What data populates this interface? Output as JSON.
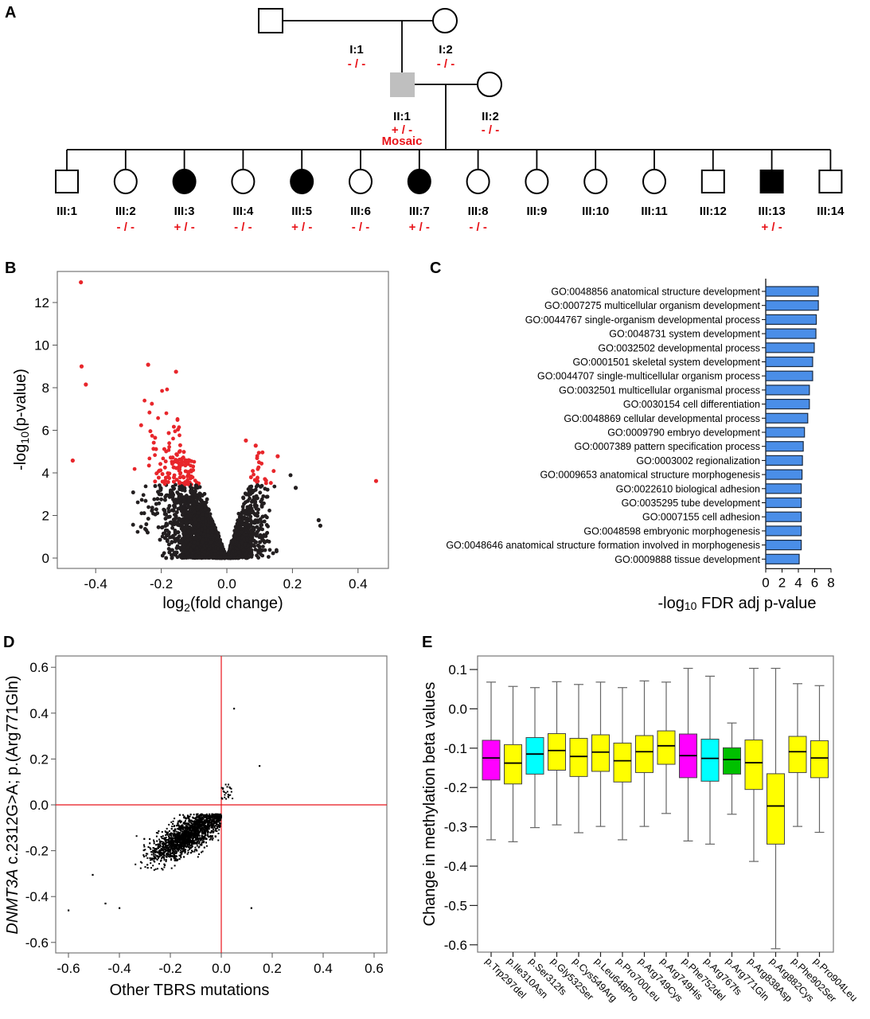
{
  "panels": {
    "A": {
      "letter": "A",
      "pedigree": {
        "generation_I": [
          {
            "id": "I:1",
            "sex": "male",
            "status": "unaffected",
            "genotype": "- / -"
          },
          {
            "id": "I:2",
            "sex": "female",
            "status": "unaffected",
            "genotype": "- / -"
          }
        ],
        "generation_II": [
          {
            "id": "II:1",
            "sex": "male",
            "status": "mosaic",
            "genotype": "+ / -",
            "note": "Mosaic"
          },
          {
            "id": "II:2",
            "sex": "female",
            "status": "unaffected",
            "genotype": "- / -"
          }
        ],
        "generation_III": [
          {
            "id": "III:1",
            "sex": "male",
            "status": "unaffected",
            "genotype": ""
          },
          {
            "id": "III:2",
            "sex": "female",
            "status": "unaffected",
            "genotype": "- / -"
          },
          {
            "id": "III:3",
            "sex": "female",
            "status": "affected",
            "genotype": "+ / -"
          },
          {
            "id": "III:4",
            "sex": "female",
            "status": "unaffected",
            "genotype": "- / -"
          },
          {
            "id": "III:5",
            "sex": "female",
            "status": "affected",
            "genotype": "+ / -"
          },
          {
            "id": "III:6",
            "sex": "female",
            "status": "unaffected",
            "genotype": "- / -"
          },
          {
            "id": "III:7",
            "sex": "female",
            "status": "affected",
            "genotype": "+ / -"
          },
          {
            "id": "III:8",
            "sex": "female",
            "status": "unaffected",
            "genotype": "- / -"
          },
          {
            "id": "III:9",
            "sex": "female",
            "status": "unaffected",
            "genotype": ""
          },
          {
            "id": "III:10",
            "sex": "female",
            "status": "unaffected",
            "genotype": ""
          },
          {
            "id": "III:11",
            "sex": "female",
            "status": "unaffected",
            "genotype": ""
          },
          {
            "id": "III:12",
            "sex": "male",
            "status": "unaffected",
            "genotype": ""
          },
          {
            "id": "III:13",
            "sex": "male",
            "status": "affected",
            "genotype": "+ / -"
          },
          {
            "id": "III:14",
            "sex": "male",
            "status": "unaffected",
            "genotype": ""
          }
        ],
        "colors": {
          "affected": "#000000",
          "mosaic": "#bfbfbf",
          "unaffected": "#ffffff",
          "genotype_text": "#e8141a"
        }
      }
    },
    "B": {
      "letter": "B"
    },
    "C": {
      "letter": "C"
    },
    "D": {
      "letter": "D"
    },
    "E": {
      "letter": "E"
    }
  },
  "chart_data": [
    {
      "panel": "B",
      "type": "scatter",
      "title": "",
      "xlabel": "log2(fold change)",
      "xlabel_main": "log",
      "xlabel_sub": "2",
      "xlabel_rest": "(fold change)",
      "ylabel_main": "-log",
      "ylabel_sub": "10",
      "ylabel_rest": "(p-value)",
      "ylabel": "-log10(p-value)",
      "xlim": [
        -0.5,
        0.5
      ],
      "ylim": [
        -0.5,
        13.5
      ],
      "xticks": [
        -0.4,
        -0.2,
        0.0,
        0.2,
        0.4
      ],
      "xtick_labels": [
        "-0.4",
        "-0.2",
        "0.0",
        "0.2",
        "0.4"
      ],
      "yticks": [
        0,
        2,
        4,
        6,
        8,
        10,
        12
      ],
      "ytick_labels": [
        "0",
        "2",
        "4",
        "6",
        "8",
        "10",
        "12"
      ],
      "significance_threshold": 3.45,
      "colors": {
        "significant": "#e8262b",
        "nonsignificant": "#231f20"
      },
      "highlighted_points": [
        {
          "x": -0.445,
          "y": 12.95
        },
        {
          "x": -0.443,
          "y": 9.0
        },
        {
          "x": -0.43,
          "y": 8.15
        },
        {
          "x": -0.47,
          "y": 4.58
        },
        {
          "x": 0.455,
          "y": 3.62
        },
        {
          "x": -0.24,
          "y": 9.08
        },
        {
          "x": -0.155,
          "y": 8.75
        },
        {
          "x": 0.058,
          "y": 5.52
        },
        {
          "x": 0.088,
          "y": 5.28
        },
        {
          "x": 0.155,
          "y": 4.78
        },
        {
          "x": 0.21,
          "y": 3.3
        },
        {
          "x": 0.28,
          "y": 1.78
        },
        {
          "x": 0.285,
          "y": 1.52
        }
      ],
      "note": "Volcano plot: dense cloud of points; points above threshold on -log10 p colored red"
    },
    {
      "panel": "C",
      "type": "bar",
      "orientation": "horizontal",
      "xlabel": "-log10 FDR adj p-value",
      "xlabel_main": "-log",
      "xlabel_sub": "10",
      "xlabel_rest": " FDR adj p-value",
      "xlim": [
        0,
        8
      ],
      "xticks": [
        0,
        2,
        4,
        6,
        8
      ],
      "xtick_labels": [
        "0",
        "2",
        "4",
        "6",
        "8"
      ],
      "bar_color": "#4a8ee8",
      "categories": [
        "GO:0048856 anatomical structure development",
        "GO:0007275 multicellular organism development",
        "GO:0044767 single-organism developmental process",
        "GO:0048731 system development",
        "GO:0032502 developmental process",
        "GO:0001501 skeletal system development",
        "GO:0044707 single-multicellular organism process",
        "GO:0032501 multicellular organismal process",
        "GO:0030154 cell differentiation",
        "GO:0048869 cellular developmental process",
        "GO:0009790 embryo development",
        "GO:0007389 pattern specification process",
        "GO:0003002 regionalization",
        "GO:0009653 anatomical structure morphogenesis",
        "GO:0022610 biological adhesion",
        "GO:0035295 tube development",
        "GO:0007155 cell adhesion",
        "GO:0048598 embryonic morphogenesis",
        "GO:0048646 anatomical structure formation involved in morphogenesis",
        "GO:0009888 tissue development"
      ],
      "values": [
        6.45,
        6.45,
        6.2,
        6.15,
        5.95,
        5.75,
        5.75,
        5.35,
        5.35,
        5.15,
        4.75,
        4.6,
        4.5,
        4.45,
        4.35,
        4.35,
        4.35,
        4.35,
        4.35,
        4.1
      ]
    },
    {
      "panel": "D",
      "type": "scatter",
      "xlabel": "Other TBRS mutations",
      "ylabel_italic": "DNMT3A",
      "ylabel_rest": " c.2312G>A; p.(Arg771Gln)",
      "ylabel": "DNMT3A c.2312G>A; p.(Arg771Gln)",
      "xlim": [
        -0.65,
        0.65
      ],
      "ylim": [
        -0.65,
        0.65
      ],
      "xticks": [
        -0.6,
        -0.4,
        -0.2,
        0.0,
        0.2,
        0.4,
        0.6
      ],
      "xtick_labels": [
        "-0.6",
        "-0.4",
        "-0.2",
        "0.0",
        "0.2",
        "0.4",
        "0.6"
      ],
      "yticks": [
        -0.6,
        -0.4,
        -0.2,
        0.0,
        0.2,
        0.4,
        0.6
      ],
      "ytick_labels": [
        "-0.6",
        "-0.4",
        "-0.2",
        "0.0",
        "0.2",
        "0.4",
        "0.6"
      ],
      "reference_lines": {
        "x": 0.0,
        "y": 0.0,
        "color": "#e8141a"
      },
      "outlier_points": [
        {
          "x": 0.05,
          "y": 0.42
        },
        {
          "x": 0.15,
          "y": 0.17
        },
        {
          "x": -0.6,
          "y": -0.46
        },
        {
          "x": -0.455,
          "y": -0.43
        },
        {
          "x": -0.4,
          "y": -0.45
        },
        {
          "x": 0.118,
          "y": -0.45
        },
        {
          "x": -0.505,
          "y": -0.305
        }
      ],
      "cluster": {
        "center_x": -0.13,
        "center_y": -0.13,
        "note": "dense positively correlated cluster"
      }
    },
    {
      "panel": "E",
      "type": "box",
      "ylabel": "Change in methylation beta values",
      "ylim": [
        -0.62,
        0.13
      ],
      "yticks": [
        0.1,
        0.0,
        -0.1,
        -0.2,
        -0.3,
        -0.4,
        -0.5,
        -0.6
      ],
      "ytick_labels": [
        "0.1",
        "0.0",
        "-0.1",
        "-0.2",
        "-0.3",
        "-0.4",
        "-0.5",
        "-0.6"
      ],
      "categories": [
        "p.Trp297del",
        "p.Ile310Asn",
        "p.Ser312fs",
        "p.Gly532Ser",
        "p.Cys549Arg",
        "p.Leu648Pro",
        "p.Pro700Leu",
        "p.Arg749Cys",
        "p.Arg749His",
        "p.Phe752del",
        "p.Arg767fs",
        "p.Arg771Gln",
        "p.Arg838Asp",
        "p.Arg882Cys",
        "p.Phe902Ser",
        "p.Pro904Leu"
      ],
      "colors": [
        "#ff00ff",
        "#ffff00",
        "#00ffff",
        "#ffff00",
        "#ffff00",
        "#ffff00",
        "#ffff00",
        "#ffff00",
        "#ffff00",
        "#ff00ff",
        "#00ffff",
        "#00c000",
        "#ffff00",
        "#ffff00",
        "#ffff00",
        "#ffff00"
      ],
      "boxes": [
        {
          "whisker_high": 0.068,
          "q3": -0.08,
          "median": -0.125,
          "q1": -0.181,
          "whisker_low": -0.333
        },
        {
          "whisker_high": 0.057,
          "q3": -0.091,
          "median": -0.138,
          "q1": -0.191,
          "whisker_low": -0.338
        },
        {
          "whisker_high": 0.054,
          "q3": -0.073,
          "median": -0.115,
          "q1": -0.166,
          "whisker_low": -0.302
        },
        {
          "whisker_high": 0.069,
          "q3": -0.063,
          "median": -0.106,
          "q1": -0.156,
          "whisker_low": -0.295
        },
        {
          "whisker_high": 0.062,
          "q3": -0.075,
          "median": -0.121,
          "q1": -0.172,
          "whisker_low": -0.315
        },
        {
          "whisker_high": 0.068,
          "q3": -0.066,
          "median": -0.11,
          "q1": -0.159,
          "whisker_low": -0.299
        },
        {
          "whisker_high": 0.054,
          "q3": -0.087,
          "median": -0.132,
          "q1": -0.186,
          "whisker_low": -0.333
        },
        {
          "whisker_high": 0.071,
          "q3": -0.068,
          "median": -0.109,
          "q1": -0.162,
          "whisker_low": -0.299
        },
        {
          "whisker_high": 0.068,
          "q3": -0.056,
          "median": -0.094,
          "q1": -0.141,
          "whisker_low": -0.266
        },
        {
          "whisker_high": 0.103,
          "q3": -0.064,
          "median": -0.119,
          "q1": -0.175,
          "whisker_low": -0.336
        },
        {
          "whisker_high": 0.083,
          "q3": -0.077,
          "median": -0.126,
          "q1": -0.184,
          "whisker_low": -0.344
        },
        {
          "whisker_high": -0.036,
          "q3": -0.099,
          "median": -0.129,
          "q1": -0.166,
          "whisker_low": -0.268
        },
        {
          "whisker_high": 0.103,
          "q3": -0.079,
          "median": -0.137,
          "q1": -0.205,
          "whisker_low": -0.388
        },
        {
          "whisker_high": 0.103,
          "q3": -0.165,
          "median": -0.247,
          "q1": -0.344,
          "whisker_low": -0.61
        },
        {
          "whisker_high": 0.064,
          "q3": -0.07,
          "median": -0.109,
          "q1": -0.162,
          "whisker_low": -0.299
        },
        {
          "whisker_high": 0.059,
          "q3": -0.081,
          "median": -0.125,
          "q1": -0.175,
          "whisker_low": -0.314
        }
      ]
    }
  ]
}
